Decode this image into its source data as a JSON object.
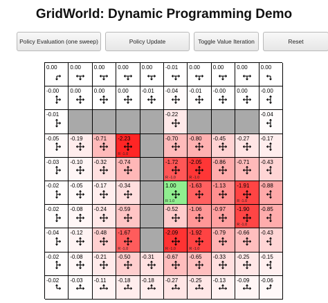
{
  "title": "GridWorld: Dynamic Programming Demo",
  "toolbar": {
    "buttons": [
      "Policy Evaluation (one sweep)",
      "Policy Update",
      "Toggle Value Iteration",
      "Reset"
    ]
  },
  "colors": {
    "wall": "#a9a9a9",
    "positive": "#90ee90",
    "negative_strong": "#ff2a2a",
    "neutral": "#ffffff"
  },
  "grid": {
    "rows": 10,
    "cols": 10,
    "walls": [
      [
        2,
        1
      ],
      [
        2,
        2
      ],
      [
        2,
        3
      ],
      [
        2,
        4
      ],
      [
        2,
        6
      ],
      [
        2,
        7
      ],
      [
        2,
        8
      ],
      [
        3,
        4
      ],
      [
        4,
        4
      ],
      [
        5,
        4
      ],
      [
        6,
        4
      ],
      [
        7,
        4
      ]
    ],
    "values": [
      [
        "0.00",
        "0.00",
        "0.00",
        "0.00",
        "0.00",
        "-0.01",
        "0.00",
        "0.00",
        "0.00",
        "0.00"
      ],
      [
        "-0.00",
        "0.00",
        "0.00",
        "0.00",
        "-0.01",
        "-0.04",
        "-0.01",
        "-0.00",
        "0.00",
        "-0.00"
      ],
      [
        "-0.01",
        "",
        "",
        "",
        "",
        "-0.22",
        "",
        "",
        "",
        "-0.04"
      ],
      [
        "-0.05",
        "-0.19",
        "-0.71",
        "-2.23",
        "",
        "-0.70",
        "-0.80",
        "-0.45",
        "-0.27",
        "-0.17"
      ],
      [
        "-0.03",
        "-0.10",
        "-0.32",
        "-0.74",
        "",
        "-1.72",
        "-2.05",
        "-0.86",
        "-0.71",
        "-0.43"
      ],
      [
        "-0.02",
        "-0.05",
        "-0.17",
        "-0.34",
        "",
        "1.00",
        "-1.63",
        "-1.13",
        "-1.91",
        "-0.88"
      ],
      [
        "-0.02",
        "-0.08",
        "-0.24",
        "-0.59",
        "",
        "-0.52",
        "-1.06",
        "-0.97",
        "-1.90",
        "-0.85"
      ],
      [
        "-0.04",
        "-0.12",
        "-0.48",
        "-1.67",
        "",
        "-2.09",
        "-1.92",
        "-0.79",
        "-0.66",
        "-0.43"
      ],
      [
        "-0.02",
        "-0.08",
        "-0.21",
        "-0.50",
        "-0.31",
        "-0.67",
        "-0.65",
        "-0.33",
        "-0.25",
        "-0.15"
      ],
      [
        "-0.02",
        "-0.03",
        "-0.11",
        "-0.18",
        "-0.18",
        "-0.27",
        "-0.25",
        "-0.13",
        "-0.09",
        "-0.06"
      ]
    ],
    "rewards": [
      {
        "r": 3,
        "c": 3,
        "text": "R -1.0"
      },
      {
        "r": 4,
        "c": 5,
        "text": "R -1.0"
      },
      {
        "r": 4,
        "c": 6,
        "text": "R -1.0"
      },
      {
        "r": 5,
        "c": 5,
        "text": "R 1.0"
      },
      {
        "r": 5,
        "c": 8,
        "text": "R -1.0"
      },
      {
        "r": 6,
        "c": 8,
        "text": "R -1.0"
      },
      {
        "r": 7,
        "c": 3,
        "text": "R -1.0"
      },
      {
        "r": 7,
        "c": 5,
        "text": "R -1.0"
      },
      {
        "r": 7,
        "c": 6,
        "text": "R -1.0"
      }
    ],
    "policy_icons": [
      [
        "arrow-down-right-icon",
        "arrows-lrd-icon",
        "arrows-lrd-icon",
        "arrows-lrd-icon",
        "arrows-lrd-icon",
        "arrows-lrd-icon",
        "arrows-lrd-icon",
        "arrows-lrd-icon",
        "arrows-lrd-icon",
        "arrow-down-left-icon"
      ],
      [
        "arrows-urd-icon",
        "arrows-all-icon",
        "arrows-all-icon",
        "arrows-all-icon",
        "arrows-all-icon",
        "arrows-all-icon",
        "arrows-all-icon",
        "arrows-all-icon",
        "arrows-all-icon",
        "arrows-uld-icon"
      ],
      [
        "arrows-urd-icon",
        "",
        "",
        "",
        "",
        "arrows-all-icon",
        "",
        "",
        "",
        "arrows-uld-icon"
      ],
      [
        "arrows-urd-icon",
        "arrows-all-icon",
        "arrows-all-icon",
        "arrows-all-icon",
        "",
        "arrows-all-icon",
        "arrows-all-icon",
        "arrows-all-icon",
        "arrows-all-icon",
        "arrows-uld-icon"
      ],
      [
        "arrows-urd-icon",
        "arrows-all-icon",
        "arrows-all-icon",
        "arrows-all-icon",
        "",
        "arrows-all-icon",
        "arrows-all-icon",
        "arrows-all-icon",
        "arrows-all-icon",
        "arrows-uld-icon"
      ],
      [
        "arrows-urd-icon",
        "arrows-all-icon",
        "arrows-all-icon",
        "arrows-all-icon",
        "",
        "arrows-all-icon",
        "arrows-all-icon",
        "arrows-all-icon",
        "arrows-all-icon",
        "arrows-uld-icon"
      ],
      [
        "arrows-urd-icon",
        "arrows-all-icon",
        "arrows-all-icon",
        "arrows-all-icon",
        "",
        "arrows-all-icon",
        "arrows-all-icon",
        "arrows-all-icon",
        "arrows-all-icon",
        "arrows-uld-icon"
      ],
      [
        "arrows-urd-icon",
        "arrows-all-icon",
        "arrows-all-icon",
        "arrows-all-icon",
        "",
        "arrows-all-icon",
        "arrows-all-icon",
        "arrows-all-icon",
        "arrows-all-icon",
        "arrows-uld-icon"
      ],
      [
        "arrows-urd-icon",
        "arrows-all-icon",
        "arrows-all-icon",
        "arrows-all-icon",
        "arrows-all-icon",
        "arrows-all-icon",
        "arrows-all-icon",
        "arrows-all-icon",
        "arrows-all-icon",
        "arrows-uld-icon"
      ],
      [
        "arrow-up-right-icon",
        "arrows-lru-icon",
        "arrows-lru-icon",
        "arrows-lru-icon",
        "arrows-lru-icon",
        "arrows-lru-icon",
        "arrows-lru-icon",
        "arrows-lru-icon",
        "arrows-lru-icon",
        "arrow-up-left-icon"
      ]
    ]
  }
}
